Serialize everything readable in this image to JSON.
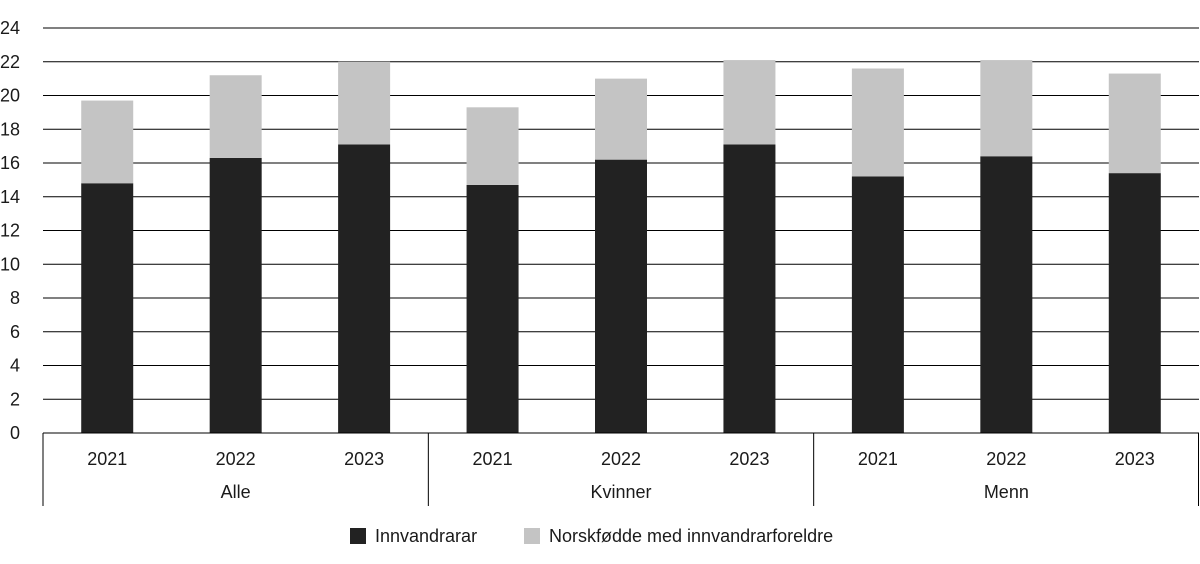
{
  "chart_data": {
    "type": "bar",
    "stacked": true,
    "title": "",
    "xlabel": "",
    "ylabel": "",
    "ylim": [
      0,
      24
    ],
    "yticks": [
      0,
      2,
      4,
      6,
      8,
      10,
      12,
      14,
      16,
      18,
      20,
      22,
      24
    ],
    "grid": true,
    "legend_position": "bottom",
    "groups": [
      {
        "label": "Alle",
        "categories": [
          "2021",
          "2022",
          "2023"
        ]
      },
      {
        "label": "Kvinner",
        "categories": [
          "2021",
          "2022",
          "2023"
        ]
      },
      {
        "label": "Menn",
        "categories": [
          "2021",
          "2022",
          "2023"
        ]
      }
    ],
    "series": [
      {
        "name": "Innvandrarar",
        "color": "#222222",
        "values": [
          14.8,
          16.3,
          17.1,
          14.7,
          16.2,
          17.1,
          15.2,
          16.4,
          15.4
        ]
      },
      {
        "name": "Norskfødde med innvandrarforeldre",
        "color": "#c4c4c4",
        "values": [
          4.9,
          4.9,
          4.9,
          4.6,
          4.8,
          5.0,
          6.4,
          5.7,
          5.9
        ]
      }
    ]
  }
}
